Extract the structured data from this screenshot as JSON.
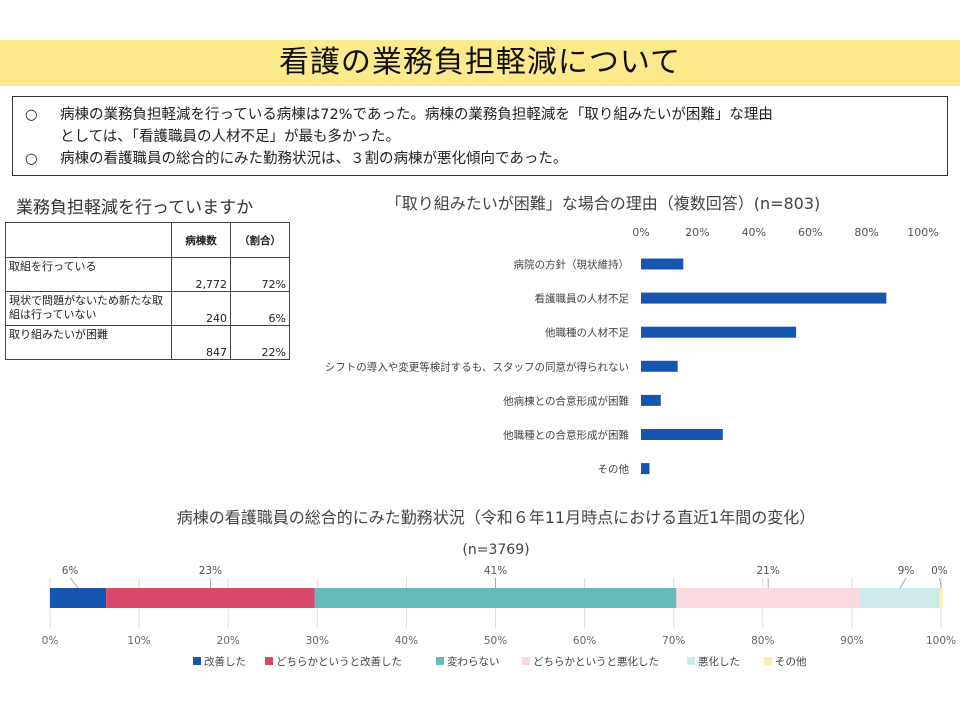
{
  "title": "看護の業務負担軽減について",
  "summary": {
    "line1": "病棟の業務負担軽減を行っている病棟は72%であった。病棟の業務負担軽減を「取り組みたいが困難」な理由",
    "line2": "としては、「看護職員の人材不足」が最も多かった。",
    "line3": "病棟の看護職員の総合的にみた勤務状況は、３割の病棟が悪化傾向であった。",
    "bullet": "○"
  },
  "table": {
    "heading": "業務負担軽減を行っていますか",
    "headers": [
      "",
      "病棟数",
      "（割合）"
    ],
    "rows": [
      {
        "label": "取組を行っている",
        "count": "2,772",
        "ratio": "72%"
      },
      {
        "label": "現状で問題がないため新たな取組は行っていない",
        "count": "240",
        "ratio": "6%"
      },
      {
        "label": "取り組みたいが困難",
        "count": "847",
        "ratio": "22%"
      }
    ]
  },
  "chart_data": [
    {
      "type": "bar",
      "orientation": "horizontal",
      "title": "「取り組みたいが困難」な場合の理由（複数回答）(n=803)",
      "categories": [
        "病院の方針（現状維持）",
        "看護職員の人材不足",
        "他職種の人材不足",
        "シフトの導入や変更等検討するも、スタッフの同意が得られない",
        "他病棟との合意形成が困難",
        "他職種との合意形成が困難",
        "その他"
      ],
      "values": [
        15,
        87,
        55,
        13,
        7,
        29,
        3
      ],
      "unit": "%",
      "xlim": [
        0,
        100
      ],
      "xticks": [
        "0%",
        "20%",
        "40%",
        "60%",
        "80%",
        "100%"
      ],
      "color": "#1656b0",
      "grid": false
    },
    {
      "type": "bar",
      "orientation": "horizontal",
      "stacked": true,
      "title": "病棟の看護職員の総合的にみた勤務状況（令和６年11月時点における直近1年間の変化）",
      "subtitle": "(n=3769)",
      "series": [
        {
          "name": "改善した",
          "value": 6.3,
          "label": "6%",
          "color": "#1656b0"
        },
        {
          "name": "どちらかというと改善した",
          "value": 23.4,
          "label": "23%",
          "color": "#d9496c"
        },
        {
          "name": "変わらない",
          "value": 40.6,
          "label": "41%",
          "color": "#67bbb8"
        },
        {
          "name": "どちらかというと悪化した",
          "value": 20.6,
          "label": "21%",
          "color": "#fbdadf"
        },
        {
          "name": "悪化した",
          "value": 9.0,
          "label": "9%",
          "color": "#cde9e9"
        },
        {
          "name": "その他",
          "value": 0.3,
          "label": "0%",
          "color": "#fdeeb0"
        }
      ],
      "xlim": [
        0,
        100
      ],
      "xticks": [
        "0%",
        "10%",
        "20%",
        "30%",
        "40%",
        "50%",
        "60%",
        "70%",
        "80%",
        "90%",
        "100%"
      ],
      "legend": "bottom"
    }
  ]
}
